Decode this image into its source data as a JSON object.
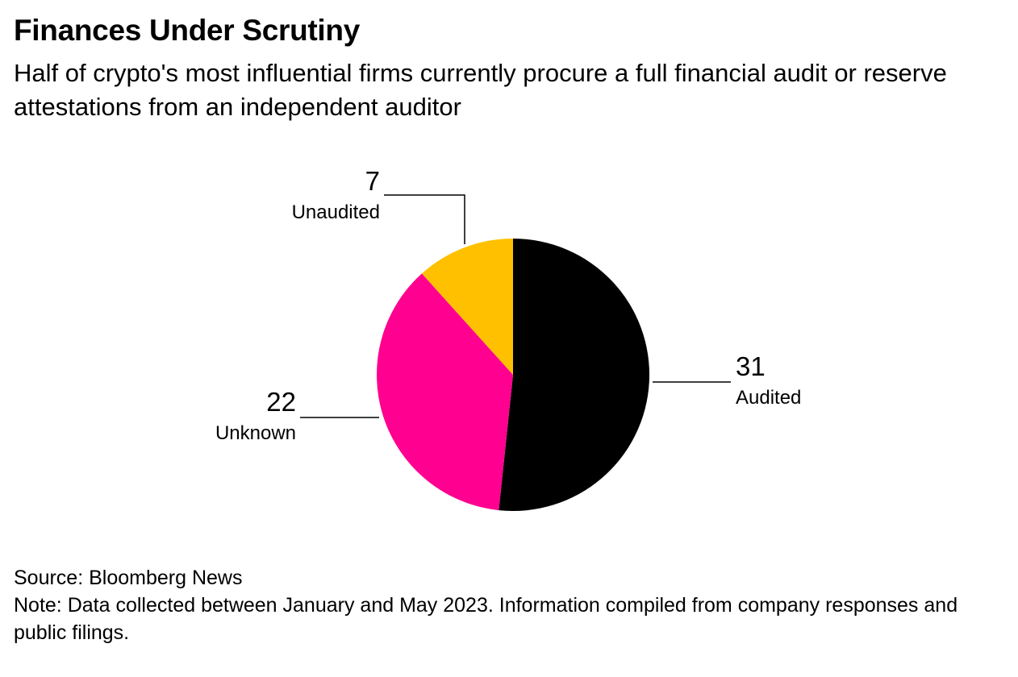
{
  "header": {
    "title": "Finances Under Scrutiny",
    "subtitle": "Half of crypto's most influential firms currently procure a full financial audit or reserve attestations from an independent auditor"
  },
  "chart_data": {
    "type": "pie",
    "slices": [
      {
        "label": "Audited",
        "value": 31,
        "color": "#000000"
      },
      {
        "label": "Unknown",
        "value": 22,
        "color": "#ff0090"
      },
      {
        "label": "Unaudited",
        "value": 7,
        "color": "#ffc000"
      }
    ],
    "start_angle": "12 o'clock",
    "direction": "clockwise",
    "legend": "none (direct labels with leader lines)"
  },
  "footer": {
    "source": "Source: Bloomberg News",
    "note": "Note: Data collected between January and May 2023. Information compiled from company responses and public filings."
  }
}
